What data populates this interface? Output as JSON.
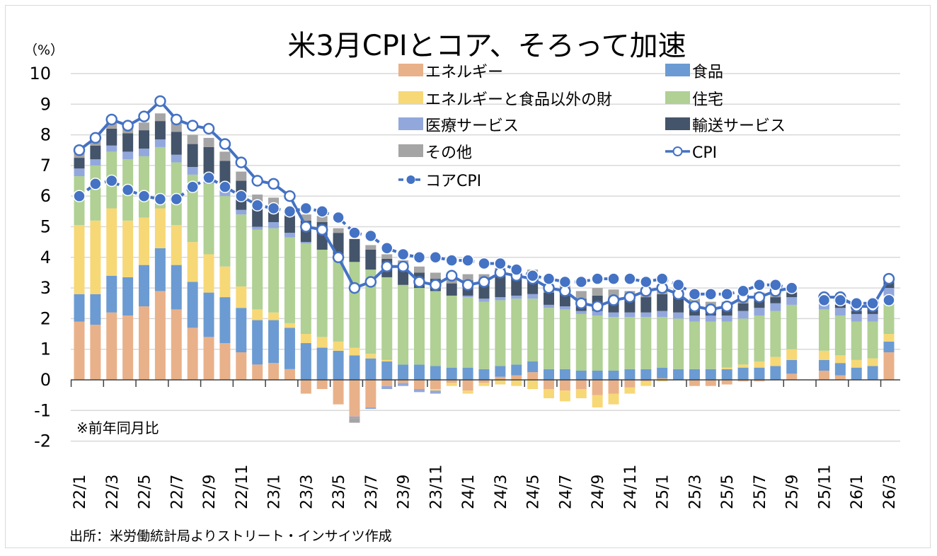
{
  "chart_data": {
    "type": "bar",
    "stacked": true,
    "title": "米3月CPIとコア、そろって加速",
    "ylabel": "（%）",
    "xlabel": "",
    "ylim": [
      -2,
      10
    ],
    "yticks": [
      10,
      9,
      8,
      7,
      6,
      5,
      4,
      3,
      2,
      1,
      0,
      -1,
      -2
    ],
    "grid": true,
    "legend_position": "top-right",
    "note": "※前年同月比",
    "source": "出所：米労働統計局よりストリート・インサイツ作成",
    "categories": [
      "22/1",
      "22/2",
      "22/3",
      "22/4",
      "22/5",
      "22/6",
      "22/7",
      "22/8",
      "22/9",
      "22/10",
      "22/11",
      "22/12",
      "23/1",
      "23/2",
      "23/3",
      "23/4",
      "23/5",
      "23/6",
      "23/7",
      "23/8",
      "23/9",
      "23/10",
      "23/11",
      "23/12",
      "24/1",
      "24/2",
      "24/3",
      "24/4",
      "24/5",
      "24/6",
      "24/7",
      "24/8",
      "24/9",
      "24/10",
      "24/11",
      "24/12",
      "25/1",
      "25/2",
      "25/3",
      "25/4",
      "25/5",
      "25/6",
      "25/7",
      "25/8",
      "25/9",
      "25/10",
      "25/11",
      "25/12",
      "26/1",
      "26/2",
      "26/3"
    ],
    "xtick_labels": [
      "22/1",
      "22/3",
      "22/5",
      "22/7",
      "22/9",
      "22/11",
      "23/1",
      "23/3",
      "23/5",
      "23/7",
      "23/9",
      "23/11",
      "24/1",
      "24/3",
      "24/5",
      "24/7",
      "24/9",
      "24/11",
      "25/1",
      "25/3",
      "25/5",
      "25/7",
      "25/9",
      "25/11",
      "26/1",
      "26/3"
    ],
    "series": [
      {
        "name": "エネルギー",
        "kind": "bar",
        "color": "#E9B189",
        "values": [
          1.9,
          1.8,
          2.2,
          2.1,
          2.4,
          2.9,
          2.3,
          1.7,
          1.4,
          1.2,
          0.9,
          0.5,
          0.55,
          0.35,
          -0.45,
          -0.3,
          -0.8,
          -1.2,
          -0.9,
          -0.2,
          -0.1,
          -0.3,
          -0.3,
          -0.1,
          -0.35,
          -0.1,
          0.1,
          0.15,
          0.25,
          -0.3,
          -0.35,
          -0.3,
          -0.5,
          -0.45,
          -0.25,
          -0.05,
          0.05,
          0.0,
          -0.2,
          -0.2,
          -0.15,
          -0.05,
          -0.05,
          0.0,
          0.2,
          null,
          0.3,
          0.15,
          0.0,
          0.0,
          0.9
        ]
      },
      {
        "name": "食品",
        "kind": "bar",
        "color": "#6B9BD2",
        "values": [
          0.9,
          1.0,
          1.2,
          1.25,
          1.35,
          1.4,
          1.45,
          1.5,
          1.45,
          1.5,
          1.45,
          1.45,
          1.4,
          1.35,
          1.2,
          1.05,
          0.95,
          0.8,
          0.7,
          0.6,
          0.5,
          0.5,
          0.45,
          0.4,
          0.4,
          0.35,
          0.35,
          0.35,
          0.35,
          0.35,
          0.35,
          0.3,
          0.3,
          0.3,
          0.35,
          0.35,
          0.35,
          0.35,
          0.35,
          0.35,
          0.35,
          0.4,
          0.4,
          0.45,
          0.45,
          null,
          0.35,
          0.4,
          0.4,
          0.45,
          0.35
        ]
      },
      {
        "name": "エネルギーと食品以外の財",
        "kind": "bar",
        "color": "#F7D877",
        "values": [
          2.25,
          2.4,
          2.2,
          1.85,
          1.55,
          1.3,
          1.3,
          1.3,
          1.25,
          1.0,
          0.7,
          0.35,
          0.25,
          0.15,
          0.3,
          0.35,
          0.3,
          0.25,
          0.15,
          0.05,
          0.0,
          0.0,
          -0.05,
          -0.1,
          -0.1,
          -0.1,
          -0.15,
          -0.2,
          -0.3,
          -0.3,
          -0.35,
          -0.3,
          -0.4,
          -0.35,
          -0.2,
          -0.15,
          -0.05,
          0.0,
          0.0,
          0.0,
          0.05,
          0.1,
          0.2,
          0.3,
          0.35,
          null,
          0.3,
          0.25,
          0.25,
          0.25,
          0.25
        ]
      },
      {
        "name": "住宅",
        "kind": "bar",
        "color": "#B0D094",
        "values": [
          1.6,
          1.8,
          1.85,
          2.0,
          2.0,
          2.0,
          2.05,
          2.2,
          2.3,
          2.3,
          2.35,
          2.6,
          2.75,
          2.8,
          2.95,
          2.85,
          2.8,
          2.8,
          2.75,
          2.7,
          2.6,
          2.5,
          2.45,
          2.35,
          2.3,
          2.2,
          2.15,
          2.15,
          2.05,
          2.0,
          1.95,
          1.85,
          1.8,
          1.75,
          1.7,
          1.7,
          1.65,
          1.65,
          1.55,
          1.55,
          1.5,
          1.5,
          1.5,
          1.5,
          1.45,
          null,
          1.35,
          1.3,
          1.25,
          1.2,
          1.25
        ]
      },
      {
        "name": "医療サービス",
        "kind": "bar",
        "color": "#92A8DC",
        "values": [
          0.25,
          0.2,
          0.2,
          0.25,
          0.25,
          0.25,
          0.25,
          0.25,
          0.3,
          0.2,
          0.15,
          0.1,
          0.2,
          0.15,
          0.05,
          0.0,
          0.0,
          -0.05,
          -0.05,
          -0.1,
          -0.1,
          -0.1,
          -0.1,
          0.0,
          0.05,
          0.1,
          0.1,
          0.1,
          0.15,
          0.1,
          0.1,
          0.1,
          0.15,
          0.15,
          0.15,
          0.15,
          0.2,
          0.2,
          0.2,
          0.2,
          0.2,
          0.25,
          0.25,
          0.25,
          0.25,
          null,
          0.2,
          0.25,
          0.25,
          0.25,
          0.25
        ]
      },
      {
        "name": "輸送サービス",
        "kind": "bar",
        "color": "#44546A",
        "values": [
          0.35,
          0.45,
          0.55,
          0.6,
          0.6,
          0.6,
          0.75,
          0.75,
          0.9,
          0.95,
          0.95,
          0.8,
          0.55,
          0.55,
          0.7,
          0.9,
          0.75,
          0.75,
          0.65,
          0.6,
          0.6,
          0.5,
          0.4,
          0.4,
          0.5,
          0.6,
          0.75,
          0.7,
          0.55,
          0.4,
          0.45,
          0.4,
          0.5,
          0.5,
          0.45,
          0.5,
          0.55,
          0.55,
          0.35,
          0.25,
          0.25,
          0.25,
          0.25,
          0.2,
          0.15,
          null,
          0.1,
          0.1,
          0.1,
          0.15,
          0.3
        ]
      },
      {
        "name": "その他",
        "kind": "bar",
        "color": "#A5A5A5",
        "values": [
          0.3,
          0.35,
          0.35,
          0.3,
          0.25,
          0.25,
          0.3,
          0.3,
          0.3,
          0.3,
          0.3,
          0.25,
          0.25,
          0.25,
          0.2,
          0.2,
          0.15,
          -0.15,
          0.15,
          0.15,
          0.2,
          0.2,
          0.2,
          0.2,
          0.2,
          0.2,
          0.2,
          0.2,
          0.25,
          0.25,
          0.25,
          0.25,
          0.25,
          0.25,
          0.25,
          0.25,
          0.25,
          0.25,
          0.2,
          0.2,
          0.2,
          0.25,
          0.25,
          0.25,
          0.25,
          null,
          0.2,
          0.2,
          0.2,
          0.2,
          0.0
        ]
      },
      {
        "name": "CPI",
        "kind": "line",
        "marker": "open-circle",
        "color": "#4472C4",
        "values": [
          7.5,
          7.9,
          8.5,
          8.3,
          8.6,
          9.1,
          8.5,
          8.3,
          8.2,
          7.7,
          7.1,
          6.5,
          6.4,
          6.0,
          5.0,
          4.9,
          4.0,
          3.0,
          3.2,
          3.7,
          3.7,
          3.2,
          3.1,
          3.4,
          3.1,
          3.2,
          3.5,
          3.4,
          3.3,
          3.0,
          2.9,
          2.5,
          2.4,
          2.6,
          2.7,
          2.9,
          3.0,
          2.8,
          2.4,
          2.3,
          2.4,
          2.7,
          2.7,
          2.9,
          3.0,
          null,
          2.7,
          2.7,
          2.4,
          2.4,
          3.3
        ]
      },
      {
        "name": "コアCPI",
        "kind": "line",
        "marker": "filled-circle",
        "dashed": true,
        "color": "#4472C4",
        "values": [
          6.0,
          6.4,
          6.5,
          6.2,
          6.0,
          5.9,
          5.9,
          6.3,
          6.6,
          6.3,
          6.0,
          5.7,
          5.6,
          5.5,
          5.6,
          5.5,
          5.3,
          4.8,
          4.7,
          4.3,
          4.1,
          4.0,
          4.0,
          3.9,
          3.9,
          3.8,
          3.8,
          3.6,
          3.4,
          3.3,
          3.2,
          3.2,
          3.3,
          3.3,
          3.3,
          3.2,
          3.3,
          3.1,
          2.8,
          2.8,
          2.8,
          2.9,
          3.1,
          3.1,
          3.0,
          null,
          2.6,
          2.6,
          2.5,
          2.5,
          2.6
        ]
      }
    ],
    "legend": [
      {
        "label": "エネルギー",
        "type": "box",
        "color": "#E9B189"
      },
      {
        "label": "食品",
        "type": "box",
        "color": "#6B9BD2"
      },
      {
        "label": "エネルギーと食品以外の財",
        "type": "box",
        "color": "#F7D877"
      },
      {
        "label": "住宅",
        "type": "box",
        "color": "#B0D094"
      },
      {
        "label": "医療サービス",
        "type": "box",
        "color": "#92A8DC"
      },
      {
        "label": "輸送サービス",
        "type": "box",
        "color": "#44546A"
      },
      {
        "label": "その他",
        "type": "box",
        "color": "#A5A5A5"
      },
      {
        "label": "CPI",
        "type": "open-line",
        "color": "#4472C4"
      },
      {
        "label": "コアCPI",
        "type": "dash-line",
        "color": "#4472C4"
      }
    ]
  }
}
